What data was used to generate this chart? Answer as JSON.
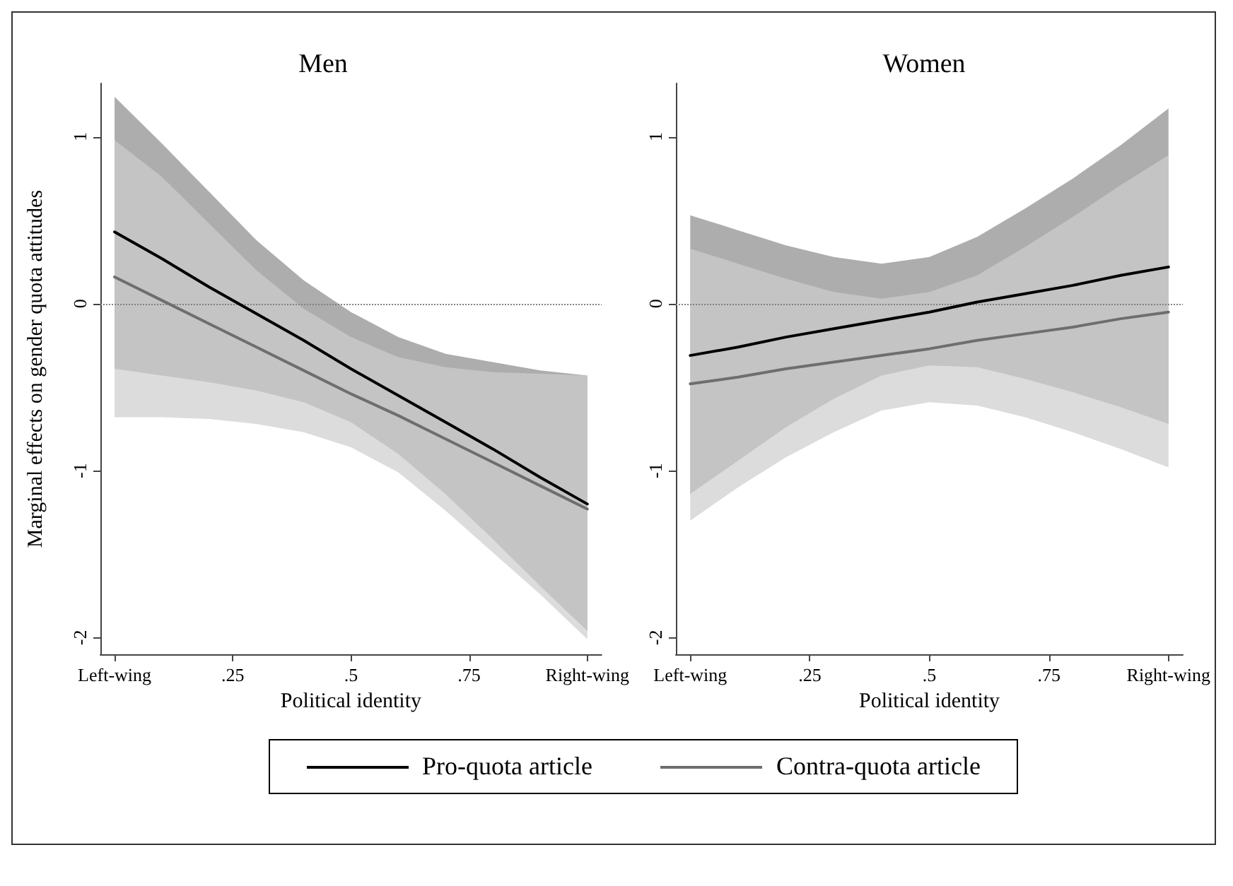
{
  "chart_data": [
    {
      "type": "line",
      "title": "Men",
      "xlabel": "Political identity",
      "ylabel": "Marginal effects on gender quota attitudes",
      "xlim": [
        -0.03,
        1.03
      ],
      "ylim": [
        -2.1,
        1.32
      ],
      "xticks": [
        {
          "value": 0,
          "label": "Left-wing"
        },
        {
          "value": 0.25,
          "label": ".25"
        },
        {
          "value": 0.5,
          "label": ".5"
        },
        {
          "value": 0.75,
          "label": ".75"
        },
        {
          "value": 1,
          "label": "Right-wing"
        }
      ],
      "yticks": [
        -2,
        -1,
        0,
        1
      ],
      "grid": false,
      "legend": "bottom",
      "marker": "none",
      "line_style": "solid",
      "ref_lines": [
        {
          "axis": "y",
          "value": 0,
          "label": null,
          "color": "#808080",
          "line_style": "dotted"
        }
      ],
      "series": [
        {
          "name": "Pro-quota article",
          "color": "#000000",
          "x": [
            0,
            0.1,
            0.2,
            0.3,
            0.4,
            0.5,
            0.6,
            0.7,
            0.8,
            0.9,
            1
          ],
          "values": [
            0.43,
            0.27,
            0.1,
            -0.06,
            -0.22,
            -0.39,
            -0.55,
            -0.71,
            -0.87,
            -1.04,
            -1.2
          ],
          "lower": [
            -0.39,
            -0.43,
            -0.47,
            -0.52,
            -0.59,
            -0.71,
            -0.9,
            -1.14,
            -1.41,
            -1.69,
            -1.96
          ],
          "upper": [
            1.24,
            0.96,
            0.67,
            0.38,
            0.14,
            -0.05,
            -0.2,
            -0.3,
            -0.35,
            -0.4,
            -0.43
          ]
        },
        {
          "name": "Contra-quota article",
          "color": "#6e6e6e",
          "x": [
            0,
            0.1,
            0.2,
            0.3,
            0.4,
            0.5,
            0.6,
            0.7,
            0.8,
            0.9,
            1
          ],
          "values": [
            0.16,
            0.02,
            -0.12,
            -0.26,
            -0.4,
            -0.54,
            -0.67,
            -0.81,
            -0.95,
            -1.09,
            -1.23
          ],
          "lower": [
            -0.68,
            -0.68,
            -0.69,
            -0.72,
            -0.77,
            -0.86,
            -1.01,
            -1.24,
            -1.49,
            -1.74,
            -2.01
          ],
          "upper": [
            0.98,
            0.76,
            0.48,
            0.2,
            -0.03,
            -0.2,
            -0.32,
            -0.38,
            -0.41,
            -0.42,
            -0.43
          ]
        }
      ]
    },
    {
      "type": "line",
      "title": "Women",
      "xlabel": "Political identity",
      "xlim": [
        -0.03,
        1.03
      ],
      "ylim": [
        -2.1,
        1.32
      ],
      "xticks": [
        {
          "value": 0,
          "label": "Left-wing"
        },
        {
          "value": 0.25,
          "label": ".25"
        },
        {
          "value": 0.5,
          "label": ".5"
        },
        {
          "value": 0.75,
          "label": ".75"
        },
        {
          "value": 1,
          "label": "Right-wing"
        }
      ],
      "yticks": [
        -2,
        -1,
        0,
        1
      ],
      "grid": false,
      "legend": "bottom",
      "marker": "none",
      "line_style": "solid",
      "ref_lines": [
        {
          "axis": "y",
          "value": 0,
          "label": null,
          "color": "#808080",
          "line_style": "dotted"
        }
      ],
      "series": [
        {
          "name": "Pro-quota article",
          "color": "#000000",
          "x": [
            0,
            0.1,
            0.2,
            0.3,
            0.4,
            0.5,
            0.6,
            0.7,
            0.8,
            0.9,
            1
          ],
          "values": [
            -0.31,
            -0.26,
            -0.2,
            -0.15,
            -0.1,
            -0.05,
            0.01,
            0.06,
            0.11,
            0.17,
            0.22
          ],
          "lower": [
            -1.14,
            -0.94,
            -0.74,
            -0.57,
            -0.43,
            -0.37,
            -0.38,
            -0.45,
            -0.53,
            -0.62,
            -0.72
          ],
          "upper": [
            0.53,
            0.44,
            0.35,
            0.28,
            0.24,
            0.28,
            0.4,
            0.57,
            0.75,
            0.95,
            1.17
          ]
        },
        {
          "name": "Contra-quota article",
          "color": "#6e6e6e",
          "x": [
            0,
            0.1,
            0.2,
            0.3,
            0.4,
            0.5,
            0.6,
            0.7,
            0.8,
            0.9,
            1
          ],
          "values": [
            -0.48,
            -0.44,
            -0.39,
            -0.35,
            -0.31,
            -0.27,
            -0.22,
            -0.18,
            -0.14,
            -0.09,
            -0.05
          ],
          "lower": [
            -1.3,
            -1.1,
            -0.92,
            -0.77,
            -0.64,
            -0.59,
            -0.61,
            -0.68,
            -0.77,
            -0.87,
            -0.98
          ],
          "upper": [
            0.33,
            0.24,
            0.15,
            0.07,
            0.03,
            0.07,
            0.17,
            0.34,
            0.52,
            0.71,
            0.89
          ]
        }
      ]
    }
  ]
}
